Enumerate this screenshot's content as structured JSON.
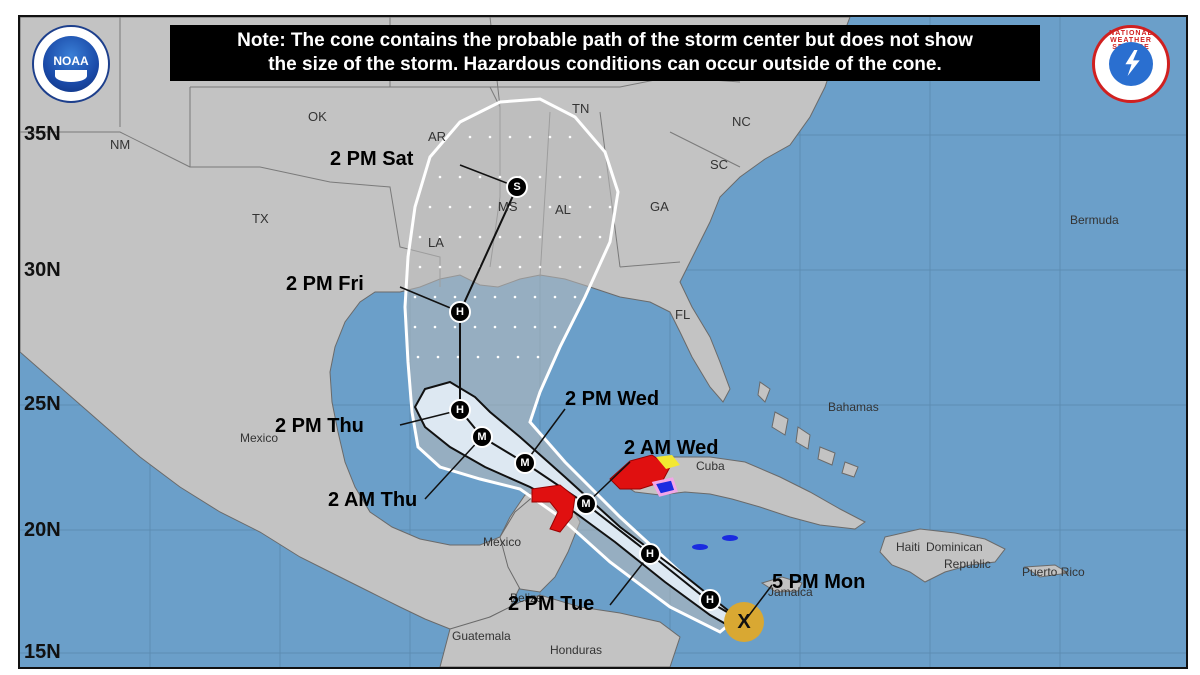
{
  "note": {
    "line1": "Note: The cone contains the probable path of the storm center but does not show",
    "line2": "the size of the storm. Hazardous conditions can occur outside of the cone."
  },
  "logos": {
    "left": "NOAA",
    "right": "NATIONAL WEATHER SERVICE"
  },
  "latitudes": [
    "35N",
    "30N",
    "25N",
    "20N",
    "15N"
  ],
  "states": [
    "OK",
    "NM",
    "TX",
    "AR",
    "TN",
    "NC",
    "SC",
    "GA",
    "AL",
    "MS",
    "LA",
    "FL"
  ],
  "places": {
    "bermuda": "Bermuda",
    "bahamas": "Bahamas",
    "cuba": "Cuba",
    "mexico_west": "Mexico",
    "mexico_yucatan": "Mexico",
    "haiti": "Haiti",
    "dominican": "Dominican",
    "republic": "Republic",
    "puerto_rico": "Puerto Rico",
    "jamaica": "Jamaica",
    "belize": "Belize",
    "guatemala": "Guatemala",
    "honduras": "Honduras"
  },
  "forecast_points": [
    {
      "label": "5 PM Mon",
      "symbol": "X"
    },
    {
      "label": "2 PM Tue",
      "symbol": "H"
    },
    {
      "label": "2 AM Wed",
      "symbol": "M"
    },
    {
      "label": "2 PM Wed",
      "symbol": "M"
    },
    {
      "label": "2 AM Thu",
      "symbol": "M"
    },
    {
      "label": "2 PM Thu",
      "symbol": "H"
    },
    {
      "label": "2 PM Fri",
      "symbol": "H"
    },
    {
      "label": "2 PM Sat",
      "symbol": "S"
    }
  ],
  "extra_markers": [
    "H"
  ],
  "colors": {
    "ocean": "#6b9fc9",
    "land": "#c3c3c3",
    "cone_near": "#dde8f2",
    "hurricane_warning": "#e01010",
    "hurricane_watch": "#f2a6e8",
    "tropical_storm_warning": "#1a2be0",
    "tropical_storm_watch": "#f3e830",
    "current_position": "#d9a832"
  }
}
